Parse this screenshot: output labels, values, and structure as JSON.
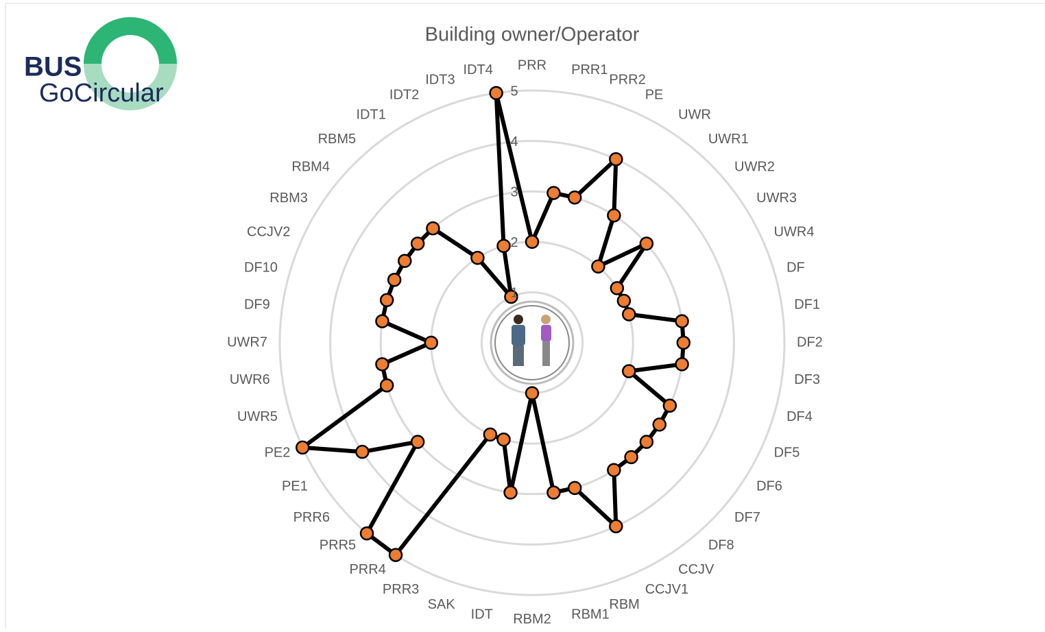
{
  "logo": {
    "line1": "BUS",
    "line2": "GoCircular"
  },
  "chart_data": {
    "type": "radar",
    "title": "Building owner/Operator",
    "categories": [
      "PRR",
      "PRR1",
      "PRR2",
      "PE",
      "UWR",
      "UWR1",
      "UWR2",
      "UWR3",
      "UWR4",
      "DF",
      "DF1",
      "DF2",
      "DF3",
      "DF4",
      "DF5",
      "DF6",
      "DF7",
      "DF8",
      "CCJV",
      "CCJV1",
      "RBM",
      "RBM1",
      "RBM2",
      "IDT",
      "SAK",
      "PRR3",
      "PRR4",
      "PRR5",
      "PRR6",
      "PE1",
      "PE2",
      "UWR5",
      "UWR6",
      "UWR7",
      "DF9",
      "DF10",
      "CCJV2",
      "RBM3",
      "RBM4",
      "RBM5",
      "IDT1",
      "IDT2",
      "IDT3",
      "IDT4"
    ],
    "values": [
      2,
      3,
      3,
      4,
      3,
      2,
      3,
      2,
      2,
      2,
      3,
      3,
      3,
      2,
      3,
      3,
      3,
      3,
      3,
      4,
      3,
      3,
      1,
      3,
      2,
      2,
      5,
      5,
      3,
      4,
      5,
      3,
      3,
      2,
      3,
      3,
      3,
      3,
      3,
      3,
      2,
      1,
      2,
      5
    ],
    "line_color": "#000000",
    "marker_color": "#ed7d31",
    "ylim": [
      0,
      5
    ],
    "yticks": [
      1,
      2,
      3,
      4,
      5
    ],
    "grid": true
  }
}
